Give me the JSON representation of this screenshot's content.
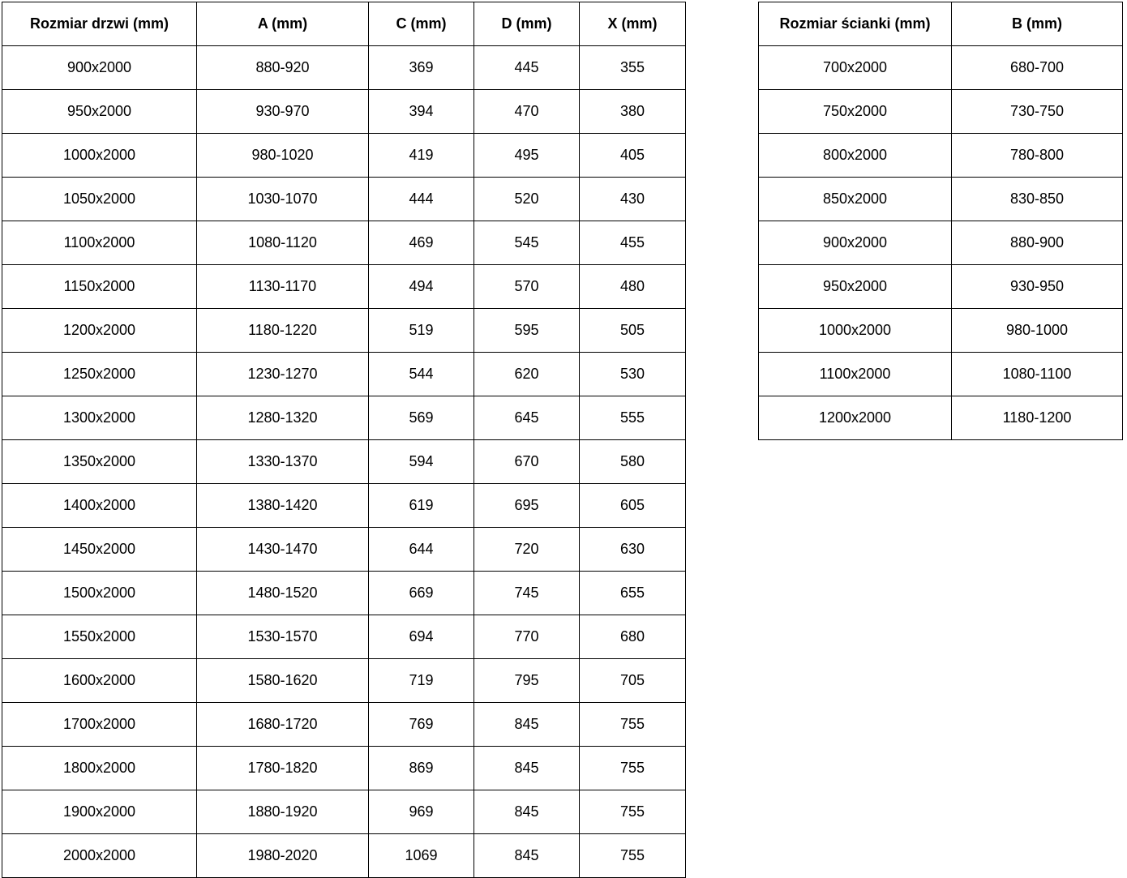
{
  "colors": {
    "background": "#ffffff",
    "border": "#000000",
    "text": "#000000"
  },
  "tables": {
    "doors": {
      "name": "door-sizes",
      "headers": [
        "Rozmiar drzwi (mm)",
        "A (mm)",
        "C (mm)",
        "D (mm)",
        "X (mm)"
      ],
      "rows": [
        [
          "900x2000",
          "880-920",
          "369",
          "445",
          "355"
        ],
        [
          "950x2000",
          "930-970",
          "394",
          "470",
          "380"
        ],
        [
          "1000x2000",
          "980-1020",
          "419",
          "495",
          "405"
        ],
        [
          "1050x2000",
          "1030-1070",
          "444",
          "520",
          "430"
        ],
        [
          "1100x2000",
          "1080-1120",
          "469",
          "545",
          "455"
        ],
        [
          "1150x2000",
          "1130-1170",
          "494",
          "570",
          "480"
        ],
        [
          "1200x2000",
          "1180-1220",
          "519",
          "595",
          "505"
        ],
        [
          "1250x2000",
          "1230-1270",
          "544",
          "620",
          "530"
        ],
        [
          "1300x2000",
          "1280-1320",
          "569",
          "645",
          "555"
        ],
        [
          "1350x2000",
          "1330-1370",
          "594",
          "670",
          "580"
        ],
        [
          "1400x2000",
          "1380-1420",
          "619",
          "695",
          "605"
        ],
        [
          "1450x2000",
          "1430-1470",
          "644",
          "720",
          "630"
        ],
        [
          "1500x2000",
          "1480-1520",
          "669",
          "745",
          "655"
        ],
        [
          "1550x2000",
          "1530-1570",
          "694",
          "770",
          "680"
        ],
        [
          "1600x2000",
          "1580-1620",
          "719",
          "795",
          "705"
        ],
        [
          "1700x2000",
          "1680-1720",
          "769",
          "845",
          "755"
        ],
        [
          "1800x2000",
          "1780-1820",
          "869",
          "845",
          "755"
        ],
        [
          "1900x2000",
          "1880-1920",
          "969",
          "845",
          "755"
        ],
        [
          "2000x2000",
          "1980-2020",
          "1069",
          "845",
          "755"
        ]
      ]
    },
    "walls": {
      "name": "wall-panel-sizes",
      "headers": [
        "Rozmiar ścianki (mm)",
        "B (mm)"
      ],
      "rows": [
        [
          "700x2000",
          "680-700"
        ],
        [
          "750x2000",
          "730-750"
        ],
        [
          "800x2000",
          "780-800"
        ],
        [
          "850x2000",
          "830-850"
        ],
        [
          "900x2000",
          "880-900"
        ],
        [
          "950x2000",
          "930-950"
        ],
        [
          "1000x2000",
          "980-1000"
        ],
        [
          "1100x2000",
          "1080-1100"
        ],
        [
          "1200x2000",
          "1180-1200"
        ]
      ]
    }
  }
}
